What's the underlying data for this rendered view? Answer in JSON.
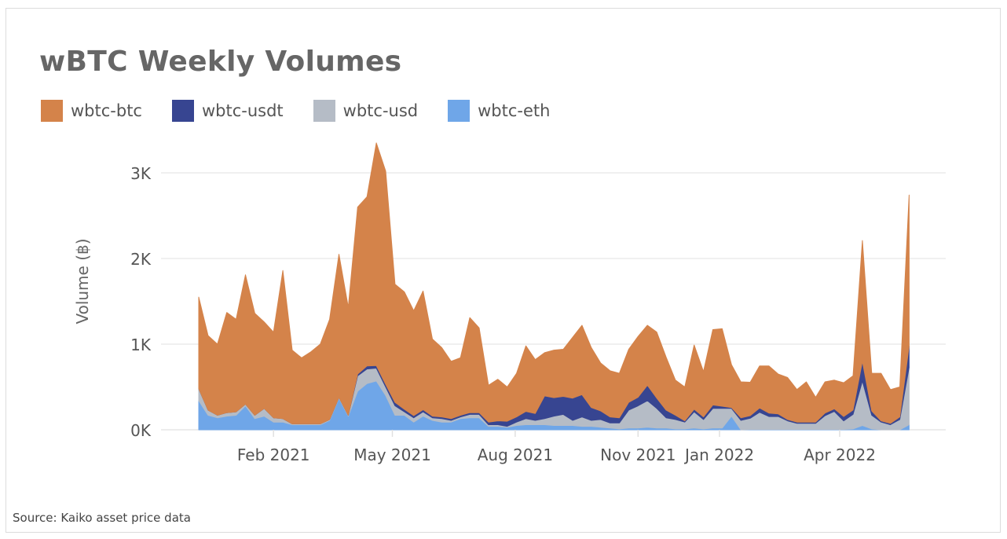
{
  "title": "wBTC Weekly Volumes",
  "source": "Source: Kaiko asset price data",
  "chart_data": {
    "type": "area",
    "stacked": true,
    "title": "wBTC Weekly Volumes",
    "ylabel": "Volume (฿)",
    "xlabel": "",
    "ylim": [
      0,
      3400
    ],
    "yticks": [
      {
        "value": 0,
        "label": "0K"
      },
      {
        "value": 1000,
        "label": "1K"
      },
      {
        "value": 2000,
        "label": "2K"
      },
      {
        "value": 3000,
        "label": "3K"
      }
    ],
    "xticks": [
      {
        "date": "2021-02-01",
        "label": "Feb 2021"
      },
      {
        "date": "2021-05-01",
        "label": "May 2021"
      },
      {
        "date": "2021-08-01",
        "label": "Aug 2021"
      },
      {
        "date": "2021-11-01",
        "label": "Nov 2021"
      },
      {
        "date": "2022-01-01",
        "label": "Jan 2022"
      },
      {
        "date": "2022-04-01",
        "label": "Apr 2022"
      }
    ],
    "grid": true,
    "legend_position": "top-left",
    "x": [
      "2020-12-07",
      "2020-12-14",
      "2020-12-21",
      "2020-12-28",
      "2021-01-04",
      "2021-01-11",
      "2021-01-18",
      "2021-01-25",
      "2021-02-01",
      "2021-02-08",
      "2021-02-15",
      "2021-02-22",
      "2021-03-01",
      "2021-03-08",
      "2021-03-15",
      "2021-03-22",
      "2021-03-29",
      "2021-04-05",
      "2021-04-12",
      "2021-04-19",
      "2021-04-26",
      "2021-05-03",
      "2021-05-10",
      "2021-05-17",
      "2021-05-24",
      "2021-05-31",
      "2021-06-07",
      "2021-06-14",
      "2021-06-21",
      "2021-06-28",
      "2021-07-05",
      "2021-07-12",
      "2021-07-19",
      "2021-07-26",
      "2021-08-02",
      "2021-08-09",
      "2021-08-16",
      "2021-08-23",
      "2021-08-30",
      "2021-09-06",
      "2021-09-13",
      "2021-09-20",
      "2021-09-27",
      "2021-10-04",
      "2021-10-11",
      "2021-10-18",
      "2021-10-25",
      "2021-11-01",
      "2021-11-08",
      "2021-11-15",
      "2021-11-22",
      "2021-11-29",
      "2021-12-06",
      "2021-12-13",
      "2021-12-20",
      "2021-12-27",
      "2022-01-03",
      "2022-01-10",
      "2022-01-17",
      "2022-01-24",
      "2022-01-31",
      "2022-02-07",
      "2022-02-14",
      "2022-02-21",
      "2022-02-28",
      "2022-03-07",
      "2022-03-14",
      "2022-03-21",
      "2022-03-28",
      "2022-04-04",
      "2022-04-11",
      "2022-04-18",
      "2022-04-25",
      "2022-05-02",
      "2022-05-09",
      "2022-05-16",
      "2022-05-23"
    ],
    "series": [
      {
        "name": "wbtc-eth",
        "color": "#6fa6e8",
        "values": [
          340,
          170,
          140,
          160,
          170,
          280,
          130,
          160,
          90,
          90,
          60,
          60,
          60,
          60,
          110,
          370,
          160,
          450,
          540,
          570,
          400,
          170,
          170,
          90,
          160,
          110,
          90,
          90,
          130,
          140,
          140,
          40,
          40,
          30,
          50,
          60,
          60,
          60,
          50,
          50,
          50,
          40,
          40,
          30,
          20,
          10,
          20,
          20,
          30,
          20,
          20,
          10,
          10,
          20,
          10,
          20,
          20,
          160,
          0,
          5,
          5,
          5,
          5,
          5,
          5,
          5,
          5,
          5,
          5,
          5,
          10,
          50,
          10,
          0,
          0,
          0,
          60
        ]
      },
      {
        "name": "wbtc-usd",
        "color": "#b5bcc6",
        "values": [
          140,
          60,
          30,
          40,
          40,
          20,
          40,
          90,
          50,
          40,
          10,
          10,
          10,
          10,
          10,
          10,
          10,
          180,
          170,
          150,
          100,
          110,
          40,
          50,
          50,
          30,
          40,
          20,
          20,
          40,
          40,
          20,
          20,
          10,
          40,
          70,
          50,
          70,
          110,
          130,
          60,
          110,
          70,
          90,
          60,
          70,
          210,
          260,
          310,
          230,
          120,
          110,
          80,
          190,
          110,
          230,
          230,
          90,
          110,
          130,
          200,
          150,
          150,
          100,
          70,
          70,
          70,
          160,
          210,
          100,
          170,
          520,
          160,
          90,
          60,
          120,
          670
        ]
      },
      {
        "name": "wbtc-usdt",
        "color": "#374591",
        "values": [
          0,
          0,
          0,
          0,
          0,
          0,
          0,
          0,
          0,
          0,
          0,
          0,
          0,
          0,
          0,
          0,
          0,
          20,
          35,
          30,
          30,
          40,
          30,
          25,
          25,
          20,
          20,
          20,
          20,
          20,
          20,
          30,
          45,
          60,
          60,
          85,
          80,
          265,
          215,
          210,
          260,
          260,
          150,
          100,
          70,
          60,
          90,
          100,
          180,
          120,
          90,
          50,
          15,
          30,
          30,
          40,
          25,
          10,
          30,
          30,
          50,
          40,
          30,
          15,
          15,
          15,
          15,
          30,
          30,
          50,
          50,
          230,
          50,
          15,
          15,
          30,
          250
        ]
      },
      {
        "name": "wbtc-btc",
        "color": "#d4834a",
        "values": [
          1070,
          870,
          830,
          1170,
          1080,
          1510,
          1190,
          1010,
          1000,
          1730,
          860,
          770,
          840,
          930,
          1170,
          1670,
          1260,
          1950,
          1975,
          2600,
          2490,
          1380,
          1370,
          1225,
          1385,
          900,
          810,
          670,
          670,
          1110,
          990,
          430,
          485,
          400,
          510,
          765,
          630,
          505,
          555,
          550,
          710,
          810,
          700,
          560,
          540,
          520,
          620,
          710,
          700,
          770,
          620,
          410,
          395,
          750,
          530,
          880,
          905,
          500,
          420,
          390,
          490,
          550,
          465,
          490,
          380,
          470,
          290,
          365,
          335,
          395,
          400,
          1410,
          440,
          555,
          395,
          350,
          1760
        ]
      }
    ]
  },
  "legend": [
    {
      "label": "wbtc-btc",
      "color": "#d4834a"
    },
    {
      "label": "wbtc-usdt",
      "color": "#374591"
    },
    {
      "label": "wbtc-usd",
      "color": "#b5bcc6"
    },
    {
      "label": "wbtc-eth",
      "color": "#6fa6e8"
    }
  ]
}
